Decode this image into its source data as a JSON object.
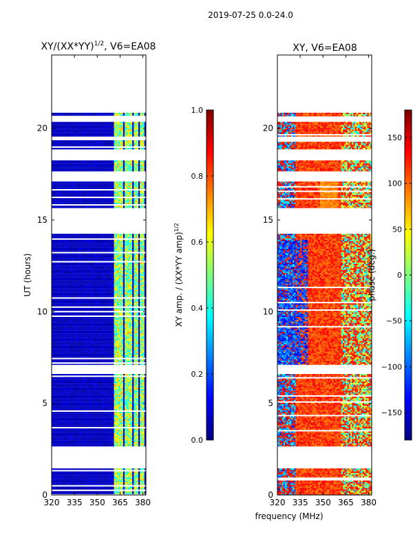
{
  "figure": {
    "suptitle": "2019-07-25 0.0-24.0",
    "shared_xlabel": "frequency (MHz)"
  },
  "colors": {
    "jet": [
      "#00007f",
      "#0000ff",
      "#007fff",
      "#00ffff",
      "#7fff7f",
      "#ffff00",
      "#ff7f00",
      "#ff0000",
      "#7f0000"
    ],
    "axes": "#000000",
    "background": "#ffffff"
  },
  "chart_data": [
    {
      "type": "heatmap",
      "title": "XY/(XX*YY)",
      "title_superscript": "1/2",
      "title_suffix": ", V6=EA08",
      "xlabel": "",
      "ylabel": "UT (hours)",
      "xlim": [
        320,
        382
      ],
      "ylim": [
        0,
        24
      ],
      "xticks": [
        320,
        335,
        350,
        365,
        380
      ],
      "yticks": [
        0,
        5,
        10,
        15,
        20
      ],
      "data_hour_ranges": [
        [
          0.0,
          1.45
        ],
        [
          2.65,
          6.6
        ],
        [
          7.1,
          14.25
        ],
        [
          15.65,
          17.1
        ],
        [
          17.65,
          18.25
        ],
        [
          18.85,
          19.35
        ],
        [
          19.55,
          20.35
        ],
        [
          20.65,
          20.85
        ]
      ],
      "hot_band_mhz": [
        [
          361,
          367
        ],
        [
          368.5,
          372.5
        ],
        [
          374,
          377
        ],
        [
          378,
          381
        ]
      ],
      "value_range": [
        0.0,
        1.0
      ],
      "colorbar": {
        "label": "XY amp. / (XX*YY amp)",
        "label_superscript": "1/2",
        "ticks": [
          "0.0",
          "0.2",
          "0.4",
          "0.6",
          "0.8",
          "1.0"
        ],
        "tick_values": [
          0.0,
          0.2,
          0.4,
          0.6,
          0.8,
          1.0
        ],
        "range": [
          0,
          1
        ]
      }
    },
    {
      "type": "heatmap",
      "title": "XY, V6=EA08",
      "xlabel": "frequency (MHz)",
      "ylabel": "",
      "xlim": [
        320,
        382
      ],
      "ylim": [
        0,
        24
      ],
      "xticks": [
        320,
        335,
        350,
        365,
        380
      ],
      "yticks": [
        0,
        5,
        10,
        15,
        20
      ],
      "data_hour_ranges": [
        [
          0.0,
          1.45
        ],
        [
          2.65,
          6.6
        ],
        [
          7.1,
          14.25
        ],
        [
          15.65,
          17.1
        ],
        [
          17.65,
          18.25
        ],
        [
          18.85,
          19.35
        ],
        [
          19.55,
          20.35
        ],
        [
          20.65,
          20.85
        ]
      ],
      "value_range": [
        -180,
        180
      ],
      "colorbar": {
        "label": "phase (deg.)",
        "ticks": [
          "−150",
          "−100",
          "−50",
          "0",
          "50",
          "100",
          "150"
        ],
        "tick_values": [
          -150,
          -100,
          -50,
          0,
          50,
          100,
          150
        ],
        "range": [
          -180,
          180
        ]
      }
    }
  ]
}
